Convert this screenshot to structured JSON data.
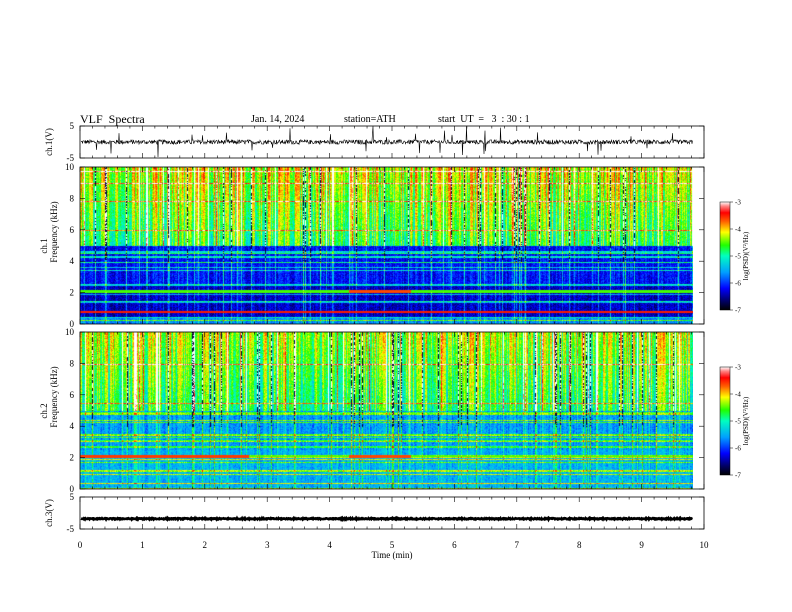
{
  "header": {
    "title": "VLF  Spectra",
    "date": "Jan. 14, 2024",
    "station": "station=ATH",
    "start_time": "start  UT  =   3  : 30 : 1"
  },
  "chart_data": [
    {
      "type": "line",
      "name": "ch1-waveform",
      "ylabel": "ch.1(V)",
      "ylim": [
        -5,
        5
      ],
      "yticks": [
        "5",
        "-5"
      ],
      "xlim": [
        0,
        10
      ],
      "note_level": 0
    },
    {
      "type": "heatmap",
      "name": "ch1-spectrogram",
      "ylabel": "ch.1\nFrequency (kHz)",
      "ylabel_lines": [
        "ch.1",
        "Frequency  (kHz)"
      ],
      "ylim": [
        0,
        10
      ],
      "yticks": [
        "0",
        "2",
        "4",
        "6",
        "8",
        "10"
      ],
      "xlim": [
        0,
        10
      ],
      "colorbar": {
        "label": "log(PSD)(V²/Hz)",
        "ticks": [
          "-3",
          "-4",
          "-5",
          "-6",
          "-7"
        ],
        "range": [
          -7,
          -3
        ]
      }
    },
    {
      "type": "heatmap",
      "name": "ch2-spectrogram",
      "ylabel_lines": [
        "ch.2",
        "Frequency  (kHz)"
      ],
      "ylim": [
        0,
        10
      ],
      "yticks": [
        "0",
        "2",
        "4",
        "6",
        "8",
        "10"
      ],
      "xlim": [
        0,
        10
      ],
      "colorbar": {
        "label": "log(PSD)(V²/Hz)",
        "ticks": [
          "-3",
          "-4",
          "-5",
          "-6",
          "-7"
        ],
        "range": [
          -7,
          -3
        ]
      }
    },
    {
      "type": "line",
      "name": "ch3-waveform",
      "ylabel": "ch.3(V)",
      "ylim": [
        -5,
        5
      ],
      "yticks": [
        "5",
        "-5"
      ],
      "xlim": [
        0,
        10
      ],
      "xlabel": "Time  (min)",
      "xticks": [
        "0",
        "1",
        "2",
        "3",
        "4",
        "5",
        "6",
        "7",
        "8",
        "9",
        "10"
      ],
      "note_level": -1.8
    }
  ]
}
